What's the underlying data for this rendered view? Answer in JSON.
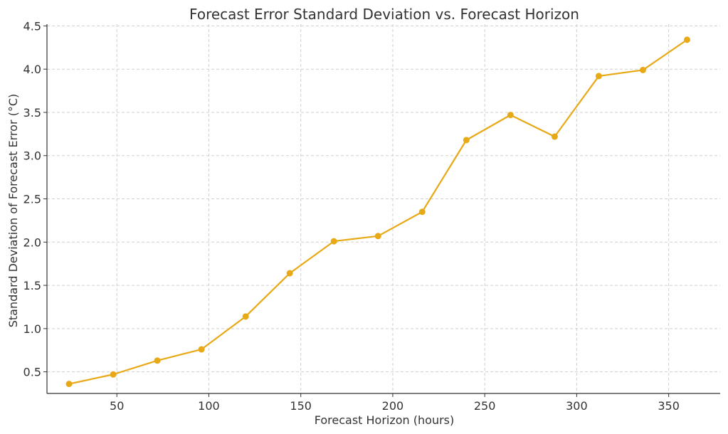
{
  "chart_data": {
    "type": "line",
    "title": "Forecast Error Standard Deviation vs. Forecast Horizon",
    "xlabel": "Forecast Horizon (hours)",
    "ylabel": "Standard Deviation of Forecast Error (°C)",
    "xlim": [
      12,
      378
    ],
    "ylim": [
      0.25,
      4.52
    ],
    "xticks": [
      50,
      100,
      150,
      200,
      250,
      300,
      350
    ],
    "xtick_labels": [
      "50",
      "100",
      "150",
      "200",
      "250",
      "300",
      "350"
    ],
    "yticks": [
      0.5,
      1.0,
      1.5,
      2.0,
      2.5,
      3.0,
      3.5,
      4.0,
      4.5
    ],
    "ytick_labels": [
      "0.5",
      "1.0",
      "1.5",
      "2.0",
      "2.5",
      "3.0",
      "3.5",
      "4.0",
      "4.5"
    ],
    "grid": true,
    "series": [
      {
        "color": "#e8a916",
        "x": [
          24,
          48,
          72,
          96,
          120,
          144,
          168,
          192,
          216,
          240,
          264,
          288,
          312,
          336,
          360
        ],
        "y": [
          0.36,
          0.47,
          0.63,
          0.76,
          1.14,
          1.64,
          2.01,
          2.07,
          2.35,
          3.18,
          3.47,
          3.22,
          3.92,
          3.99,
          4.34
        ]
      }
    ]
  }
}
